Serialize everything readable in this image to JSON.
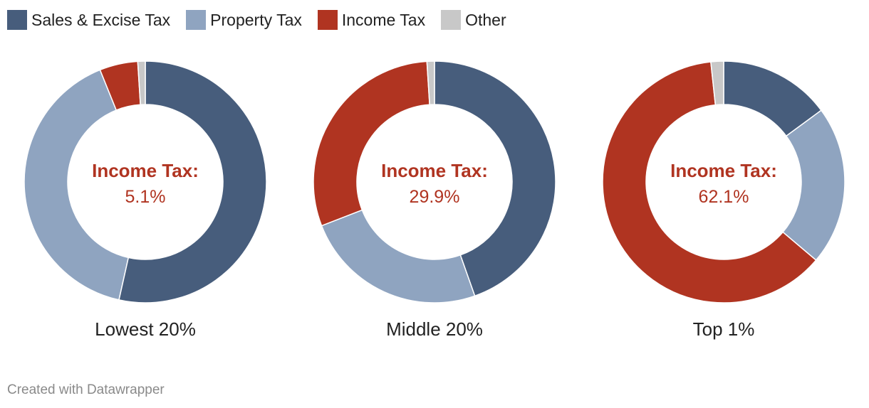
{
  "legend": [
    {
      "label": "Sales & Excise Tax",
      "color": "#475d7c"
    },
    {
      "label": "Property Tax",
      "color": "#8fa4c0"
    },
    {
      "label": "Income Tax",
      "color": "#b03421"
    },
    {
      "label": "Other",
      "color": "#c8c8c8"
    }
  ],
  "chart_data": [
    {
      "type": "pie",
      "title": "Lowest 20%",
      "center_label": "Income Tax:",
      "center_value": "5.1%",
      "slices": [
        {
          "label": "Sales & Excise Tax",
          "value": 53.5
        },
        {
          "label": "Property Tax",
          "value": 40.4
        },
        {
          "label": "Income Tax",
          "value": 5.1
        },
        {
          "label": "Other",
          "value": 1.0
        }
      ]
    },
    {
      "type": "pie",
      "title": "Middle 20%",
      "center_label": "Income Tax:",
      "center_value": "29.9%",
      "slices": [
        {
          "label": "Sales & Excise Tax",
          "value": 44.6
        },
        {
          "label": "Property Tax",
          "value": 24.5
        },
        {
          "label": "Income Tax",
          "value": 29.9
        },
        {
          "label": "Other",
          "value": 1.0
        }
      ]
    },
    {
      "type": "pie",
      "title": "Top 1%",
      "center_label": "Income Tax:",
      "center_value": "62.1%",
      "slices": [
        {
          "label": "Sales & Excise Tax",
          "value": 14.9
        },
        {
          "label": "Property Tax",
          "value": 21.3
        },
        {
          "label": "Income Tax",
          "value": 62.1
        },
        {
          "label": "Other",
          "value": 1.7
        }
      ]
    }
  ],
  "footer": "Created with Datawrapper"
}
